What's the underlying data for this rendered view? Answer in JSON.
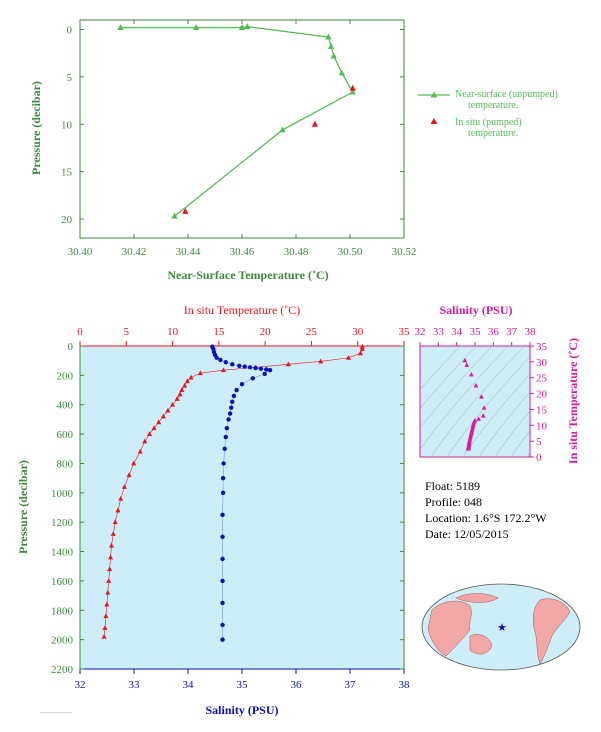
{
  "colors": {
    "green": "#55bb55",
    "green_axis": "#3d8a3d",
    "red": "#e8141c",
    "blue": "#0a10b4",
    "magenta": "#d81b9a",
    "plot_bg": "#cdeef8"
  },
  "float_info": {
    "float": "Float:  5189",
    "profile": "Profile:  048",
    "location": "Location:  1.6°S  172.2°W",
    "date": "Date:  12/05/2015"
  },
  "chart_data": [
    {
      "type": "line",
      "title": "",
      "xlabel": "Near-Surface Temperature (˚C)",
      "ylabel": "Pressure (decibar)",
      "xlim": [
        30.4,
        30.52
      ],
      "ylim": [
        22,
        -1
      ],
      "xticks": [
        "30.40",
        "30.42",
        "30.44",
        "30.46",
        "30.48",
        "30.50",
        "30.52"
      ],
      "yticks": [
        "0",
        "5",
        "10",
        "15",
        "20"
      ],
      "legend_position": "right",
      "series": [
        {
          "name": "Near-surface (unpumped) temperature.",
          "marker": "triangle",
          "line": true,
          "x": [
            30.415,
            30.443,
            30.46,
            30.462,
            30.492,
            30.493,
            30.494,
            30.497,
            30.501,
            30.475,
            30.435
          ],
          "y": [
            -0.2,
            -0.2,
            -0.2,
            -0.3,
            0.8,
            1.8,
            2.8,
            4.6,
            6.6,
            10.6,
            19.7
          ]
        },
        {
          "name": "In situ (pumped) temperature.",
          "marker": "triangle",
          "line": false,
          "x": [
            30.501,
            30.487,
            30.439
          ],
          "y": [
            6.2,
            10.0,
            19.2
          ]
        }
      ]
    },
    {
      "type": "line",
      "title": "",
      "ylabel": "Pressure (decibar)",
      "ylim": [
        2200,
        0
      ],
      "yticks": [
        "0",
        "200",
        "400",
        "600",
        "800",
        "1000",
        "1200",
        "1400",
        "1600",
        "1800",
        "2000",
        "2200"
      ],
      "x_top": {
        "label": "In situ Temperature (˚C)",
        "lim": [
          0,
          35
        ],
        "ticks": [
          "0",
          "5",
          "10",
          "15",
          "20",
          "25",
          "30",
          "35"
        ]
      },
      "x_bottom": {
        "label": "Salinity (PSU)",
        "lim": [
          32,
          38
        ],
        "ticks": [
          "32",
          "33",
          "34",
          "35",
          "36",
          "37",
          "38"
        ]
      },
      "series": [
        {
          "axis": "temperature",
          "x": [
            30.5,
            30.5,
            30.3,
            29.0,
            26.0,
            22.5,
            19.0,
            15.5,
            13.0,
            12.0,
            11.6,
            11.3,
            11.0,
            10.8,
            10.5,
            10.0,
            9.5,
            9.0,
            8.5,
            8.0,
            7.5,
            7.0,
            6.5,
            5.8,
            5.3,
            4.8,
            4.4,
            4.1,
            3.8,
            3.6,
            3.4,
            3.3,
            3.2,
            3.1,
            3.0,
            2.9,
            2.8,
            2.7,
            2.6
          ],
          "y": [
            5,
            20,
            50,
            80,
            105,
            125,
            145,
            165,
            185,
            215,
            240,
            270,
            300,
            330,
            360,
            400,
            440,
            480,
            520,
            560,
            600,
            650,
            720,
            800,
            880,
            960,
            1040,
            1120,
            1200,
            1280,
            1360,
            1440,
            1520,
            1600,
            1680,
            1760,
            1840,
            1920,
            1980
          ]
        },
        {
          "axis": "salinity",
          "x": [
            34.45,
            34.47,
            34.48,
            34.5,
            34.53,
            34.6,
            34.7,
            34.82,
            34.95,
            35.05,
            35.15,
            35.25,
            35.35,
            35.45,
            35.52,
            35.42,
            35.2,
            35.0,
            34.9,
            34.85,
            34.82,
            34.8,
            34.78,
            34.75,
            34.72,
            34.7,
            34.68,
            34.66,
            34.65,
            34.65,
            34.64,
            34.64,
            34.64,
            34.64,
            34.64,
            34.64,
            34.64
          ],
          "y": [
            5,
            20,
            40,
            60,
            80,
            95,
            110,
            125,
            135,
            140,
            145,
            150,
            155,
            160,
            165,
            190,
            220,
            260,
            300,
            340,
            380,
            420,
            460,
            500,
            560,
            620,
            700,
            800,
            900,
            1000,
            1150,
            1300,
            1450,
            1600,
            1750,
            1900,
            2000
          ]
        }
      ]
    },
    {
      "type": "scatter",
      "title": "",
      "x_top": {
        "label": "Salinity (PSU)",
        "lim": [
          32,
          38
        ],
        "ticks": [
          "32",
          "33",
          "34",
          "35",
          "36",
          "37",
          "38"
        ]
      },
      "y_right": {
        "label": "In situ Temperature (˚C)",
        "lim": [
          0,
          35
        ],
        "ticks": [
          "0",
          "5",
          "10",
          "15",
          "20",
          "25",
          "30",
          "35"
        ]
      },
      "points": {
        "x": [
          34.45,
          34.55,
          34.8,
          35.05,
          35.35,
          35.5,
          35.45,
          35.2,
          35.0,
          34.95,
          34.92,
          34.9,
          34.88,
          34.86,
          34.84,
          34.82,
          34.8,
          34.78,
          34.76,
          34.74,
          34.72,
          34.7,
          34.69,
          34.68,
          34.67,
          34.66,
          34.65,
          34.65,
          34.64,
          34.64
        ],
        "y": [
          30.4,
          29.0,
          26.0,
          22.5,
          19.0,
          15.5,
          13.0,
          12.0,
          11.5,
          11.0,
          10.5,
          10.0,
          9.5,
          9.0,
          8.5,
          8.0,
          7.5,
          7.0,
          6.5,
          6.0,
          5.5,
          5.0,
          4.6,
          4.2,
          3.8,
          3.5,
          3.2,
          3.0,
          2.8,
          2.6
        ]
      }
    }
  ]
}
